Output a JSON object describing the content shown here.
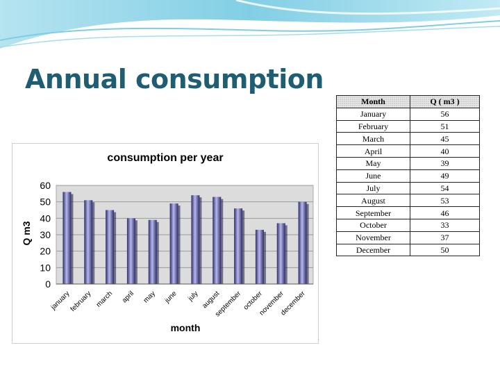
{
  "slide": {
    "title": "Annual consumption"
  },
  "table": {
    "headers": [
      "Month",
      "Q ( m3 )"
    ],
    "rows": [
      [
        "January",
        "56"
      ],
      [
        "February",
        "51"
      ],
      [
        "March",
        "45"
      ],
      [
        "April",
        "40"
      ],
      [
        "May",
        "39"
      ],
      [
        "June",
        "49"
      ],
      [
        "July",
        "54"
      ],
      [
        "August",
        "53"
      ],
      [
        "September",
        "46"
      ],
      [
        "October",
        "33"
      ],
      [
        "November",
        "37"
      ],
      [
        "December",
        "50"
      ]
    ]
  },
  "chart_data": {
    "type": "bar",
    "title": "consumption per year",
    "xlabel": "month",
    "ylabel": "Q m3",
    "categories": [
      "january",
      "february",
      "march",
      "april",
      "may",
      "june",
      "july",
      "august",
      "september",
      "october",
      "november",
      "december"
    ],
    "values": [
      56,
      51,
      45,
      40,
      39,
      49,
      54,
      53,
      46,
      33,
      37,
      50
    ],
    "ylim": [
      0,
      60
    ],
    "yticks": [
      0,
      10,
      20,
      30,
      40,
      50,
      60
    ],
    "grid": true,
    "legend": "none",
    "colors": {
      "bar": "#5a5aa8",
      "bar_light": "#b8b8ec",
      "bar_dark": "#2c2c6a",
      "plot_bg": "#dcdcdc"
    }
  },
  "colors": {
    "title": "#1f5d73",
    "banner": "#8fd3e8"
  }
}
